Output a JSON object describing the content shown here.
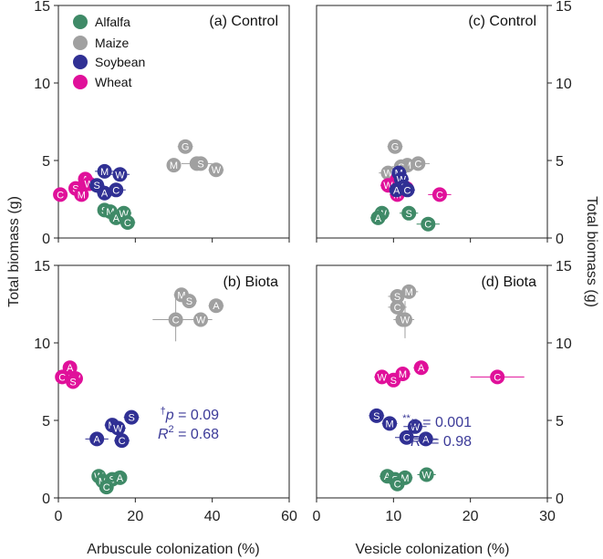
{
  "colors": {
    "Alfalfa": "#3f8a67",
    "Maize": "#a0a0a0",
    "Soybean": "#303094",
    "Wheat": "#e0109a",
    "axis": "#222222",
    "stat": "#3b3a98"
  },
  "chart_data": {
    "type": "scatter",
    "legend": [
      {
        "name": "Alfalfa"
      },
      {
        "name": "Maize"
      },
      {
        "name": "Soybean"
      },
      {
        "name": "Wheat"
      }
    ],
    "ylabel_left": "Total biomass (g)",
    "ylabel_right": "Total biomass (g)",
    "xlabel_left": "Arbuscule colonization (%)",
    "xlabel_right": "Vesicle colonization (%)",
    "x_left": {
      "min": 0,
      "max": 60,
      "ticks": [
        "0",
        "20",
        "40",
        "60"
      ]
    },
    "x_right": {
      "min": 0,
      "max": 30,
      "ticks": [
        "0",
        "10",
        "20",
        "30"
      ]
    },
    "y": {
      "min": 0,
      "max": 15,
      "ticks": [
        "0",
        "5",
        "10",
        "15"
      ]
    },
    "panels": [
      {
        "id": "a",
        "title": "(a) Control",
        "xaxis": "left",
        "points": [
          {
            "crop": "Alfalfa",
            "label": "S",
            "x": 12,
            "y": 1.8,
            "xerr": 1.5,
            "yerr": 0.2
          },
          {
            "crop": "Alfalfa",
            "label": "M",
            "x": 13.5,
            "y": 1.7,
            "xerr": 1.5,
            "yerr": 0.2
          },
          {
            "crop": "Alfalfa",
            "label": "A",
            "x": 15,
            "y": 1.3,
            "xerr": 2,
            "yerr": 0.2
          },
          {
            "crop": "Alfalfa",
            "label": "W",
            "x": 17,
            "y": 1.6,
            "xerr": 2,
            "yerr": 0.2
          },
          {
            "crop": "Alfalfa",
            "label": "C",
            "x": 18,
            "y": 1.0,
            "xerr": 2,
            "yerr": 0.2
          },
          {
            "crop": "Maize",
            "label": "G",
            "x": 33,
            "y": 5.9,
            "xerr": 2,
            "yerr": 0.3
          },
          {
            "crop": "Maize",
            "label": "M",
            "x": 30,
            "y": 4.7,
            "xerr": 1.5,
            "yerr": 0.3
          },
          {
            "crop": "Maize",
            "label": "C",
            "x": 36,
            "y": 4.8,
            "xerr": 4,
            "yerr": 0.4
          },
          {
            "crop": "Maize",
            "label": "S",
            "x": 37,
            "y": 4.8,
            "xerr": 2,
            "yerr": 0.3
          },
          {
            "crop": "Maize",
            "label": "W",
            "x": 41,
            "y": 4.4,
            "xerr": 2,
            "yerr": 0.3
          },
          {
            "crop": "Soybean",
            "label": "M",
            "x": 12,
            "y": 4.3,
            "xerr": 2.5,
            "yerr": 0.3
          },
          {
            "crop": "Soybean",
            "label": "W",
            "x": 16,
            "y": 4.1,
            "xerr": 2.5,
            "yerr": 0.3
          },
          {
            "crop": "Soybean",
            "label": "S",
            "x": 10,
            "y": 3.4,
            "xerr": 2,
            "yerr": 0.3
          },
          {
            "crop": "Soybean",
            "label": "C",
            "x": 15,
            "y": 3.1,
            "xerr": 2.5,
            "yerr": 0.3
          },
          {
            "crop": "Soybean",
            "label": "A",
            "x": 12,
            "y": 2.9,
            "xerr": 2,
            "yerr": 0.3
          },
          {
            "crop": "Wheat",
            "label": "A",
            "x": 7,
            "y": 3.8,
            "xerr": 1.5,
            "yerr": 0.3
          },
          {
            "crop": "Wheat",
            "label": "W",
            "x": 8,
            "y": 3.5,
            "xerr": 1.5,
            "yerr": 0.3
          },
          {
            "crop": "Wheat",
            "label": "S",
            "x": 4.5,
            "y": 3.2,
            "xerr": 1.5,
            "yerr": 0.3
          },
          {
            "crop": "Wheat",
            "label": "M",
            "x": 6,
            "y": 2.8,
            "xerr": 1.5,
            "yerr": 0.3
          },
          {
            "crop": "Wheat",
            "label": "C",
            "x": 0.5,
            "y": 2.8,
            "xerr": 0.5,
            "yerr": 0.2
          }
        ],
        "annotations": []
      },
      {
        "id": "c",
        "title": "(c) Control",
        "xaxis": "right",
        "points": [
          {
            "crop": "Alfalfa",
            "label": "W",
            "x": 8.5,
            "y": 1.6,
            "xerr": 1,
            "yerr": 0.2
          },
          {
            "crop": "Alfalfa",
            "label": "A",
            "x": 8,
            "y": 1.3,
            "xerr": 1,
            "yerr": 0.2
          },
          {
            "crop": "Alfalfa",
            "label": "S",
            "x": 12,
            "y": 1.6,
            "xerr": 1.2,
            "yerr": 0.2
          },
          {
            "crop": "Alfalfa",
            "label": "C",
            "x": 14.5,
            "y": 0.9,
            "xerr": 1.5,
            "yerr": 0.2
          },
          {
            "crop": "Maize",
            "label": "G",
            "x": 10.2,
            "y": 5.9,
            "xerr": 1,
            "yerr": 0.3
          },
          {
            "crop": "Maize",
            "label": "C",
            "x": 13.2,
            "y": 4.8,
            "xerr": 1.5,
            "yerr": 0.3
          },
          {
            "crop": "Maize",
            "label": "M",
            "x": 11.8,
            "y": 4.7,
            "xerr": 1.2,
            "yerr": 0.3
          },
          {
            "crop": "Maize",
            "label": "S",
            "x": 11,
            "y": 4.6,
            "xerr": 1.2,
            "yerr": 0.3
          },
          {
            "crop": "Maize",
            "label": "W",
            "x": 9.3,
            "y": 4.2,
            "xerr": 1.2,
            "yerr": 0.3
          },
          {
            "crop": "Soybean",
            "label": "M",
            "x": 10.7,
            "y": 4.2,
            "xerr": 1,
            "yerr": 0.3
          },
          {
            "crop": "Soybean",
            "label": "W",
            "x": 11,
            "y": 3.8,
            "xerr": 1,
            "yerr": 0.3
          },
          {
            "crop": "Soybean",
            "label": "S",
            "x": 11.3,
            "y": 3.3,
            "xerr": 1,
            "yerr": 0.3
          },
          {
            "crop": "Soybean",
            "label": "C",
            "x": 11.8,
            "y": 3.1,
            "xerr": 1,
            "yerr": 0.3
          },
          {
            "crop": "Soybean",
            "label": "A",
            "x": 10.4,
            "y": 3.1,
            "xerr": 1,
            "yerr": 0.3
          },
          {
            "crop": "Wheat",
            "label": "A",
            "x": 10.5,
            "y": 3.8,
            "xerr": 1,
            "yerr": 0.3
          },
          {
            "crop": "Wheat",
            "label": "W",
            "x": 9.3,
            "y": 3.4,
            "xerr": 1,
            "yerr": 0.3
          },
          {
            "crop": "Wheat",
            "label": "S",
            "x": 11.7,
            "y": 3.2,
            "xerr": 1,
            "yerr": 0.3
          },
          {
            "crop": "Wheat",
            "label": "M",
            "x": 10.5,
            "y": 2.8,
            "xerr": 1,
            "yerr": 0.3
          },
          {
            "crop": "Wheat",
            "label": "C",
            "x": 16,
            "y": 2.8,
            "xerr": 1.5,
            "yerr": 0.2
          }
        ],
        "annotations": []
      },
      {
        "id": "b",
        "title": "(b) Biota",
        "xaxis": "left",
        "points": [
          {
            "crop": "Alfalfa",
            "label": "W",
            "x": 10.5,
            "y": 1.4,
            "xerr": 1.5,
            "yerr": 0.3
          },
          {
            "crop": "Alfalfa",
            "label": "M",
            "x": 11.5,
            "y": 1.1,
            "xerr": 1.5,
            "yerr": 0.3
          },
          {
            "crop": "Alfalfa",
            "label": "S",
            "x": 14,
            "y": 1.2,
            "xerr": 1.5,
            "yerr": 0.3
          },
          {
            "crop": "Alfalfa",
            "label": "A",
            "x": 16,
            "y": 1.3,
            "xerr": 1.5,
            "yerr": 0.3
          },
          {
            "crop": "Alfalfa",
            "label": "C",
            "x": 12.5,
            "y": 0.7,
            "xerr": 1.5,
            "yerr": 0.3
          },
          {
            "crop": "Maize",
            "label": "M",
            "x": 32,
            "y": 13.1,
            "xerr": 2,
            "yerr": 0.4
          },
          {
            "crop": "Maize",
            "label": "S",
            "x": 34,
            "y": 12.7,
            "xerr": 2,
            "yerr": 0.4
          },
          {
            "crop": "Maize",
            "label": "A",
            "x": 41,
            "y": 12.4,
            "xerr": 2,
            "yerr": 0.4
          },
          {
            "crop": "Maize",
            "label": "C",
            "x": 30.5,
            "y": 11.5,
            "xerr": 6,
            "yerr": 1.4
          },
          {
            "crop": "Maize",
            "label": "W",
            "x": 37,
            "y": 11.5,
            "xerr": 3,
            "yerr": 0.4
          },
          {
            "crop": "Soybean",
            "label": "S",
            "x": 19,
            "y": 5.2,
            "xerr": 2,
            "yerr": 0.3
          },
          {
            "crop": "Soybean",
            "label": "M",
            "x": 14,
            "y": 4.7,
            "xerr": 2,
            "yerr": 0.3
          },
          {
            "crop": "Soybean",
            "label": "W",
            "x": 15.5,
            "y": 4.5,
            "xerr": 2,
            "yerr": 0.3
          },
          {
            "crop": "Soybean",
            "label": "A",
            "x": 10,
            "y": 3.8,
            "xerr": 3,
            "yerr": 0.3
          },
          {
            "crop": "Soybean",
            "label": "C",
            "x": 16.5,
            "y": 3.7,
            "xerr": 2,
            "yerr": 0.3
          },
          {
            "crop": "Wheat",
            "label": "A",
            "x": 3,
            "y": 8.4,
            "xerr": 1,
            "yerr": 0.3
          },
          {
            "crop": "Wheat",
            "label": "C",
            "x": 1,
            "y": 7.8,
            "xerr": 1,
            "yerr": 0.3
          },
          {
            "crop": "Wheat",
            "label": "M",
            "x": 3.5,
            "y": 7.7,
            "xerr": 1,
            "yerr": 0.3
          },
          {
            "crop": "Wheat",
            "label": "W",
            "x": 4.5,
            "y": 7.7,
            "xerr": 1,
            "yerr": 0.3
          },
          {
            "crop": "Wheat",
            "label": "S",
            "x": 3.8,
            "y": 7.5,
            "xerr": 1,
            "yerr": 0.3
          }
        ],
        "annotations": [
          {
            "dagger": "†",
            "p": "p",
            "p_text": " = 0.09",
            "r": "R",
            "r_text": " = 0.68"
          }
        ]
      },
      {
        "id": "d",
        "title": "(d) Biota",
        "xaxis": "right",
        "points": [
          {
            "crop": "Alfalfa",
            "label": "A",
            "x": 9.2,
            "y": 1.4,
            "xerr": 1,
            "yerr": 0.3
          },
          {
            "crop": "Alfalfa",
            "label": "S",
            "x": 10.2,
            "y": 1.2,
            "xerr": 1,
            "yerr": 0.3
          },
          {
            "crop": "Alfalfa",
            "label": "M",
            "x": 11.5,
            "y": 1.3,
            "xerr": 1,
            "yerr": 0.3
          },
          {
            "crop": "Alfalfa",
            "label": "C",
            "x": 10.5,
            "y": 0.9,
            "xerr": 1,
            "yerr": 0.3
          },
          {
            "crop": "Alfalfa",
            "label": "W",
            "x": 14.3,
            "y": 1.5,
            "xerr": 1.2,
            "yerr": 0.3
          },
          {
            "crop": "Maize",
            "label": "M",
            "x": 12,
            "y": 13.3,
            "xerr": 1.2,
            "yerr": 0.4
          },
          {
            "crop": "Maize",
            "label": "S",
            "x": 10.5,
            "y": 13.0,
            "xerr": 1.2,
            "yerr": 0.4
          },
          {
            "crop": "Maize",
            "label": "C",
            "x": 10.5,
            "y": 12.3,
            "xerr": 1.2,
            "yerr": 0.4
          },
          {
            "crop": "Maize",
            "label": "A",
            "x": 11.2,
            "y": 11.5,
            "xerr": 1.2,
            "yerr": 0.4
          },
          {
            "crop": "Maize",
            "label": "W",
            "x": 11.5,
            "y": 11.5,
            "xerr": 1.2,
            "yerr": 1.2
          },
          {
            "crop": "Soybean",
            "label": "S",
            "x": 7.8,
            "y": 5.3,
            "xerr": 1,
            "yerr": 0.3
          },
          {
            "crop": "Soybean",
            "label": "M",
            "x": 9.5,
            "y": 4.8,
            "xerr": 1,
            "yerr": 0.3
          },
          {
            "crop": "Soybean",
            "label": "W",
            "x": 12.8,
            "y": 4.6,
            "xerr": 1.5,
            "yerr": 0.3
          },
          {
            "crop": "Soybean",
            "label": "C",
            "x": 11.7,
            "y": 3.9,
            "xerr": 1.5,
            "yerr": 0.3
          },
          {
            "crop": "Soybean",
            "label": "A",
            "x": 14.2,
            "y": 3.8,
            "xerr": 1.5,
            "yerr": 0.3
          },
          {
            "crop": "Wheat",
            "label": "W",
            "x": 8.5,
            "y": 7.8,
            "xerr": 1,
            "yerr": 0.3
          },
          {
            "crop": "Wheat",
            "label": "S",
            "x": 10,
            "y": 7.6,
            "xerr": 1,
            "yerr": 0.3
          },
          {
            "crop": "Wheat",
            "label": "M",
            "x": 11.2,
            "y": 8.0,
            "xerr": 1,
            "yerr": 0.3
          },
          {
            "crop": "Wheat",
            "label": "A",
            "x": 13.6,
            "y": 8.4,
            "xerr": 1,
            "yerr": 0.3
          },
          {
            "crop": "Wheat",
            "label": "C",
            "x": 23.5,
            "y": 7.8,
            "xerr": 3.5,
            "yerr": 0.3
          }
        ],
        "annotations": [
          {
            "dagger": "**",
            "p": "p",
            "p_text": " = 0.001",
            "r": "R",
            "r_text": " = 0.98"
          }
        ]
      }
    ]
  }
}
